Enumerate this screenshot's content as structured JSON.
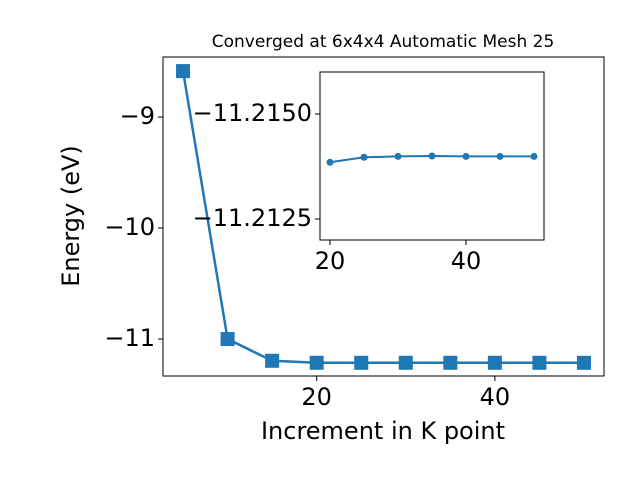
{
  "chart_data": [
    {
      "type": "line",
      "title": "Converged at 6x4x4 Automatic Mesh 25",
      "x_label": "Increment in K point",
      "y_label": "Energy (eV)",
      "x": [
        5,
        10,
        15,
        20,
        25,
        30,
        35,
        40,
        45,
        50
      ],
      "series": [
        {
          "color": "#1f77b4",
          "marker": "square",
          "values": [
            -8.586,
            -11.0,
            -11.196,
            -11.214,
            -11.214,
            -11.214,
            -11.214,
            -11.214,
            -11.214,
            -11.214
          ]
        }
      ],
      "xlim": [
        2.75,
        52.25
      ],
      "xticks": [
        20,
        40
      ],
      "ylim": [
        -11.333,
        -8.459
      ],
      "yticks": [
        {
          "value": -11,
          "label": "−11"
        },
        {
          "value": -10,
          "label": "−10"
        },
        {
          "value": -9,
          "label": "−9"
        }
      ]
    },
    {
      "type": "line",
      "x": [
        20,
        25,
        30,
        35,
        40,
        45,
        50
      ],
      "series": [
        {
          "color": "#1f77b4",
          "marker": "circle",
          "values": [
            -11.21385,
            -11.21397,
            -11.21399,
            -11.214,
            -11.21399,
            -11.21399,
            -11.21399
          ]
        }
      ],
      "xlim": [
        18.53,
        51.47
      ],
      "xticks": [
        20,
        40
      ],
      "ylim": [
        -11.212,
        -11.216
      ],
      "yticks": [
        {
          "value": -11.2125,
          "label": "−11.2125"
        },
        {
          "value": -11.215,
          "label": "−11.2150"
        }
      ]
    }
  ]
}
